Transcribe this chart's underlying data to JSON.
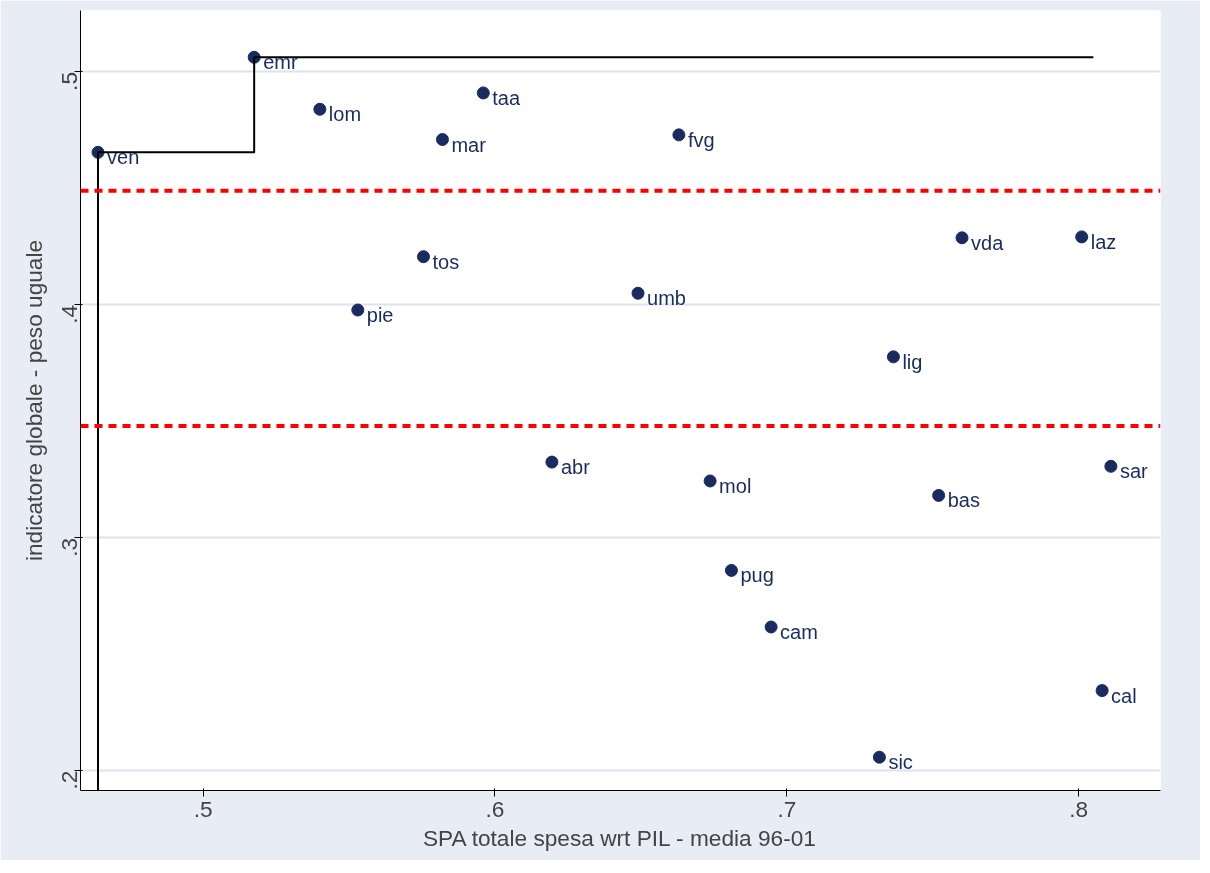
{
  "chart_data": {
    "type": "scatter",
    "xlabel": "SPA totale spesa wrt PIL - media 96-01",
    "ylabel": "indicatore globale - peso uguale",
    "xlim": [
      0.458,
      0.828
    ],
    "ylim": [
      0.1915,
      0.5264
    ],
    "xticks": [
      {
        "value": 0.5,
        "label": ".5"
      },
      {
        "value": 0.6,
        "label": ".6"
      },
      {
        "value": 0.7,
        "label": ".7"
      },
      {
        "value": 0.8,
        "label": ".8"
      }
    ],
    "yticks": [
      {
        "value": 0.2,
        "label": ".2"
      },
      {
        "value": 0.3,
        "label": ".3"
      },
      {
        "value": 0.4,
        "label": ".4"
      },
      {
        "value": 0.5,
        "label": ".5"
      }
    ],
    "grid": "y",
    "marker": "circle",
    "series": [
      {
        "color": "#1a2b5f",
        "x": [
          0.464,
          0.5175,
          0.54,
          0.596,
          0.582,
          0.663,
          0.5755,
          0.649,
          0.553,
          0.76,
          0.801,
          0.7365,
          0.6195,
          0.6737,
          0.752,
          0.811,
          0.681,
          0.6946,
          0.808,
          0.7317
        ],
        "values": [
          0.4655,
          0.5063,
          0.484,
          0.491,
          0.471,
          0.473,
          0.4207,
          0.405,
          0.3978,
          0.4288,
          0.4292,
          0.3777,
          0.3325,
          0.3244,
          0.3182,
          0.3307,
          0.286,
          0.2617,
          0.2344,
          0.2058
        ]
      },
      {
        "type": "line",
        "color": "#000000",
        "marker": "none",
        "x": [
          0.464,
          0.464,
          0.5175,
          0.5175,
          0.805
        ],
        "values": [
          0.1915,
          0.4655,
          0.4655,
          0.5063,
          0.5063
        ]
      }
    ],
    "ref_lines": [
      {
        "axis": "y",
        "value": 0.449,
        "color": "#ff0000",
        "line_style": "dashed"
      },
      {
        "axis": "y",
        "value": 0.348,
        "color": "#ff0000",
        "line_style": "dashed"
      }
    ],
    "annotations": [
      {
        "text": "ven",
        "x": 0.464,
        "y": 0.4655
      },
      {
        "text": "emr",
        "x": 0.5175,
        "y": 0.5063
      },
      {
        "text": "lom",
        "x": 0.54,
        "y": 0.484
      },
      {
        "text": "taa",
        "x": 0.596,
        "y": 0.491
      },
      {
        "text": "mar",
        "x": 0.582,
        "y": 0.471
      },
      {
        "text": "fvg",
        "x": 0.663,
        "y": 0.473
      },
      {
        "text": "tos",
        "x": 0.5755,
        "y": 0.4207
      },
      {
        "text": "umb",
        "x": 0.649,
        "y": 0.405
      },
      {
        "text": "pie",
        "x": 0.553,
        "y": 0.3978
      },
      {
        "text": "vda",
        "x": 0.76,
        "y": 0.4288
      },
      {
        "text": "laz",
        "x": 0.801,
        "y": 0.4292
      },
      {
        "text": "lig",
        "x": 0.7365,
        "y": 0.3777
      },
      {
        "text": "abr",
        "x": 0.6195,
        "y": 0.3325
      },
      {
        "text": "mol",
        "x": 0.6737,
        "y": 0.3244
      },
      {
        "text": "bas",
        "x": 0.752,
        "y": 0.3182
      },
      {
        "text": "sar",
        "x": 0.811,
        "y": 0.3307
      },
      {
        "text": "pug",
        "x": 0.681,
        "y": 0.286
      },
      {
        "text": "cam",
        "x": 0.6946,
        "y": 0.2617
      },
      {
        "text": "cal",
        "x": 0.808,
        "y": 0.2344
      },
      {
        "text": "sic",
        "x": 0.7317,
        "y": 0.2058
      }
    ]
  }
}
